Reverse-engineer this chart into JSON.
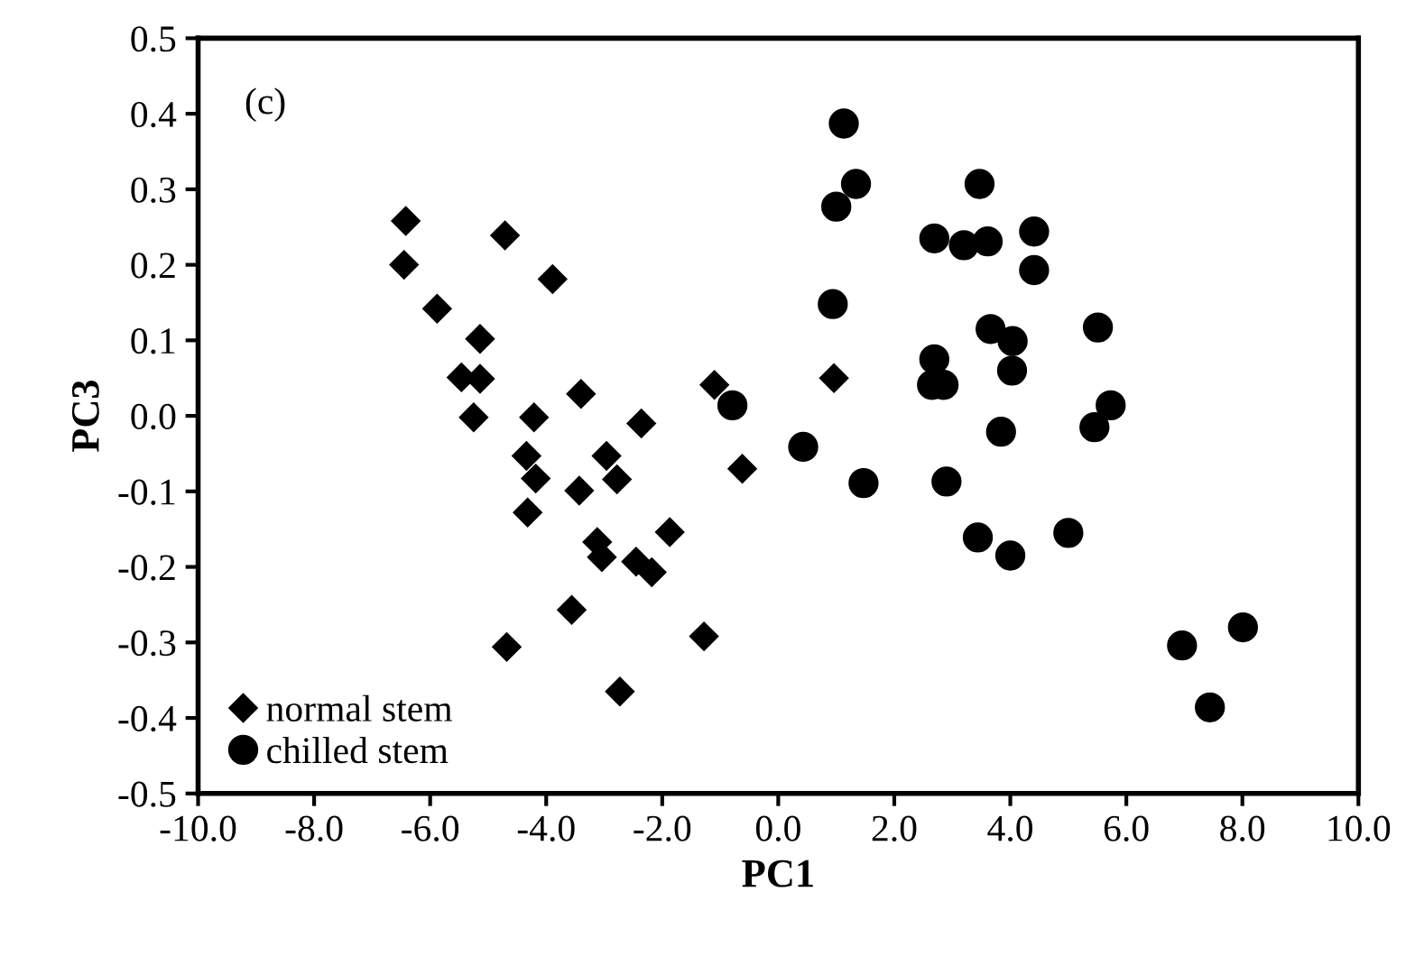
{
  "chart_data": {
    "type": "scatter",
    "xlabel": "PC1",
    "ylabel": "PC3",
    "annotations": [
      "(c)"
    ],
    "xlim": [
      -10,
      10
    ],
    "ylim": [
      -0.5,
      0.5
    ],
    "xticks": [
      {
        "value": -10,
        "label": "-10.0"
      },
      {
        "value": -8,
        "label": "-8.0"
      },
      {
        "value": -6,
        "label": "-6.0"
      },
      {
        "value": -4,
        "label": "-4.0"
      },
      {
        "value": -2,
        "label": "-2.0"
      },
      {
        "value": 0,
        "label": "0.0"
      },
      {
        "value": 2,
        "label": "2.0"
      },
      {
        "value": 4,
        "label": "4.0"
      },
      {
        "value": 6,
        "label": "6.0"
      },
      {
        "value": 8,
        "label": "8.0"
      },
      {
        "value": 10,
        "label": "10.0"
      }
    ],
    "yticks": [
      {
        "value": -0.5,
        "label": "-0.5"
      },
      {
        "value": -0.4,
        "label": "-0.4"
      },
      {
        "value": -0.3,
        "label": "-0.3"
      },
      {
        "value": -0.2,
        "label": "-0.2"
      },
      {
        "value": -0.1,
        "label": "-0.1"
      },
      {
        "value": 0,
        "label": "0.0"
      },
      {
        "value": 0.1,
        "label": "0.1"
      },
      {
        "value": 0.2,
        "label": "0.2"
      },
      {
        "value": 0.3,
        "label": "0.3"
      },
      {
        "value": 0.4,
        "label": "0.4"
      },
      {
        "value": 0.5,
        "label": "0.5"
      }
    ],
    "grid": false,
    "legend": "bottom left",
    "series": [
      {
        "name": "normal stem",
        "color": "#000000",
        "marker": "diamond",
        "x": [
          -6.42,
          -6.45,
          -4.71,
          -3.89,
          -5.88,
          -5.14,
          -5.46,
          -5.14,
          -5.25,
          -4.21,
          -3.4,
          -2.36,
          -1.1,
          -4.34,
          -4.18,
          -4.32,
          -2.96,
          -2.78,
          -3.43,
          -3.12,
          -3.04,
          -2.45,
          -2.18,
          -1.87,
          -0.62,
          0.96,
          -3.56,
          -4.68,
          -1.28,
          -2.73
        ],
        "values": [
          0.258,
          0.2,
          0.239,
          0.181,
          0.142,
          0.102,
          0.051,
          0.049,
          -0.002,
          -0.002,
          0.029,
          -0.01,
          0.041,
          -0.053,
          -0.083,
          -0.128,
          -0.053,
          -0.084,
          -0.099,
          -0.167,
          -0.187,
          -0.193,
          -0.207,
          -0.154,
          -0.07,
          0.05,
          -0.257,
          -0.306,
          -0.292,
          -0.365
        ]
      },
      {
        "name": "chilled stem",
        "color": "#000000",
        "marker": "circle",
        "x": [
          1.13,
          1.34,
          1.0,
          0.94,
          -0.79,
          0.43,
          1.47,
          2.69,
          3.47,
          3.2,
          3.61,
          4.41,
          4.41,
          3.66,
          4.04,
          4.03,
          2.69,
          2.65,
          2.85,
          3.84,
          2.9,
          3.44,
          4.0,
          5.0,
          5.51,
          5.73,
          5.45,
          6.96,
          8.01,
          7.44
        ],
        "values": [
          0.387,
          0.307,
          0.277,
          0.148,
          0.014,
          -0.041,
          -0.089,
          0.235,
          0.307,
          0.226,
          0.231,
          0.244,
          0.193,
          0.115,
          0.099,
          0.06,
          0.075,
          0.041,
          0.041,
          -0.021,
          -0.087,
          -0.161,
          -0.185,
          -0.155,
          0.117,
          0.014,
          -0.015,
          -0.304,
          -0.28,
          -0.386
        ]
      }
    ]
  }
}
